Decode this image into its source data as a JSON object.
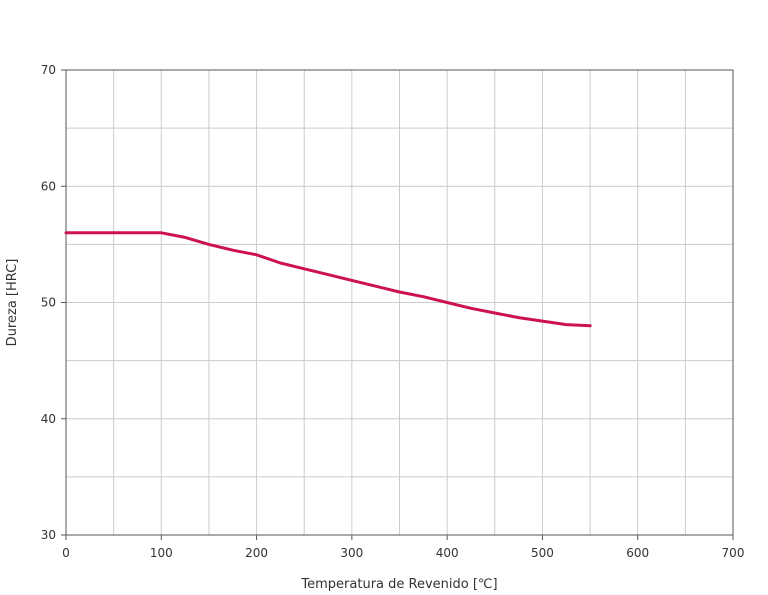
{
  "chart_data": {
    "type": "line",
    "title": "",
    "xlabel": "Temperatura de Revenido  [℃]",
    "ylabel": "Dureza [HRC]",
    "xlim": [
      0,
      700
    ],
    "ylim": [
      30,
      70
    ],
    "x_ticks": [
      0,
      100,
      200,
      300,
      400,
      500,
      600,
      700
    ],
    "y_ticks": [
      30,
      40,
      50,
      60,
      70
    ],
    "grid": true,
    "grid_x_step": 50,
    "grid_y_step": 5,
    "legend": "none",
    "colors": {
      "line": "#cc1155",
      "grid": "#cccccc",
      "axis": "#555555",
      "text": "#333333"
    },
    "series": [
      {
        "x": [
          0,
          25,
          50,
          75,
          100,
          125,
          150,
          175,
          200,
          225,
          250,
          275,
          300,
          325,
          350,
          375,
          400,
          425,
          450,
          475,
          500,
          525,
          550
        ],
        "values": [
          56,
          56,
          56,
          56,
          56,
          55.6,
          55,
          54.5,
          54.1,
          53.4,
          52.9,
          52.4,
          51.9,
          51.4,
          50.9,
          50.5,
          50.0,
          49.5,
          49.1,
          48.7,
          48.4,
          48.1,
          48.0
        ]
      }
    ]
  }
}
